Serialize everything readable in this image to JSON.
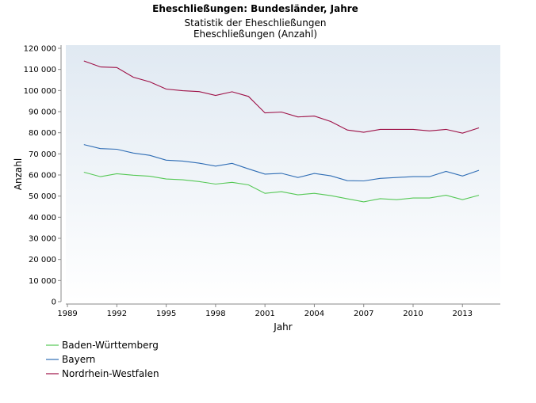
{
  "chart_data": {
    "type": "line",
    "title": "Eheschließungen: Bundesländer, Jahre",
    "subtitles": [
      "Statistik der Eheschließungen",
      "Eheschließungen (Anzahl)"
    ],
    "xlabel": "Jahr",
    "ylabel": "Anzahl",
    "xlim": [
      1988.9,
      2015.3
    ],
    "ylim": [
      0,
      120000
    ],
    "x_ticks": [
      1989,
      1992,
      1995,
      1998,
      2001,
      2004,
      2007,
      2010,
      2013
    ],
    "y_ticks": [
      0,
      10000,
      20000,
      30000,
      40000,
      50000,
      60000,
      70000,
      80000,
      90000,
      100000,
      110000,
      120000
    ],
    "y_tick_labels": [
      "0",
      "10 000",
      "20 000",
      "30 000",
      "40 000",
      "50 000",
      "60 000",
      "70 000",
      "80 000",
      "90 000",
      "100 000",
      "110 000",
      "120 000"
    ],
    "x_tick_labels": [
      "1989",
      "1992",
      "1995",
      "1998",
      "2001",
      "2004",
      "2007",
      "2010",
      "2013"
    ],
    "grid": false,
    "legend_position": "bottom-left",
    "x": [
      1990,
      1991,
      1992,
      1993,
      1994,
      1995,
      1996,
      1997,
      1998,
      1999,
      2000,
      2001,
      2002,
      2003,
      2004,
      2005,
      2006,
      2007,
      2008,
      2009,
      2010,
      2011,
      2012,
      2013,
      2014
    ],
    "series": [
      {
        "name": "Baden-Württemberg",
        "color": "#55c855",
        "values": [
          61300,
          59200,
          60600,
          59900,
          59400,
          58100,
          57700,
          56900,
          55700,
          56500,
          55300,
          51300,
          52100,
          50600,
          51300,
          50200,
          48700,
          47300,
          48800,
          48300,
          49100,
          49100,
          50400,
          48300,
          50400
        ]
      },
      {
        "name": "Bayern",
        "color": "#2f6db5",
        "values": [
          74400,
          72500,
          72200,
          70400,
          69300,
          67000,
          66600,
          65600,
          64200,
          65500,
          62900,
          60400,
          60800,
          58800,
          60700,
          59600,
          57300,
          57200,
          58400,
          58800,
          59200,
          59200,
          61700,
          59500,
          62200
        ]
      },
      {
        "name": "Nordrhein-Westfalen",
        "color": "#9e1046",
        "values": [
          114000,
          111200,
          110900,
          106300,
          104100,
          100700,
          99900,
          99500,
          97700,
          99400,
          97200,
          89400,
          89800,
          87500,
          87900,
          85300,
          81300,
          80200,
          81600,
          81600,
          81600,
          80900,
          81600,
          79800,
          82300
        ]
      }
    ]
  }
}
